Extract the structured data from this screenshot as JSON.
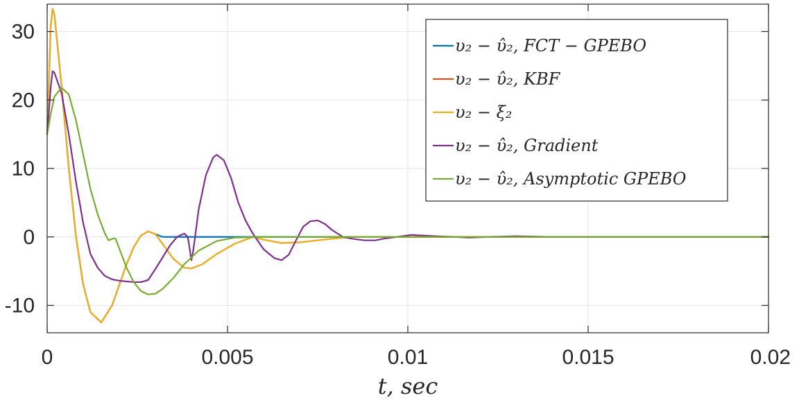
{
  "chart_data": {
    "type": "line",
    "title": "",
    "xlabel": "t, sec",
    "ylabel": "",
    "xlim": [
      0,
      0.02
    ],
    "ylim": [
      -14,
      34
    ],
    "xticks": [
      0,
      0.005,
      0.01,
      0.015,
      0.02
    ],
    "xtick_labels": [
      "0",
      "0.005",
      "0.01",
      "0.015",
      "0.02"
    ],
    "yticks": [
      -10,
      0,
      10,
      20,
      30
    ],
    "ytick_labels": [
      "-10",
      "0",
      "10",
      "20",
      "30"
    ],
    "grid": true,
    "legend_position": "top-right",
    "series": [
      {
        "name": "υ₂ − υ̂₂, FCT − GPEBO",
        "color": "#0072BD",
        "points": [
          [
            0,
            15
          ],
          [
            0.0001,
            31
          ],
          [
            0.00015,
            33.3
          ],
          [
            0.0002,
            32.5
          ],
          [
            0.0004,
            22
          ],
          [
            0.0006,
            10
          ],
          [
            0.0008,
            0
          ],
          [
            0.001,
            -7
          ],
          [
            0.0012,
            -11
          ],
          [
            0.0015,
            -12.5
          ],
          [
            0.0018,
            -10
          ],
          [
            0.002,
            -7
          ],
          [
            0.0022,
            -4
          ],
          [
            0.0024,
            -1.5
          ],
          [
            0.0026,
            0.2
          ],
          [
            0.0028,
            0.8
          ],
          [
            0.003,
            0.4
          ],
          [
            0.0032,
            0
          ],
          [
            0.004,
            0
          ],
          [
            0.005,
            0
          ],
          [
            0.01,
            0
          ],
          [
            0.015,
            0
          ],
          [
            0.02,
            0
          ]
        ]
      },
      {
        "name": "υ₂ − υ̂₂, KBF",
        "color": "#D95319",
        "points": [
          [
            0,
            15
          ],
          [
            0.0001,
            31
          ],
          [
            0.00015,
            33.3
          ],
          [
            0.0002,
            32.5
          ],
          [
            0.0004,
            22
          ],
          [
            0.0006,
            10
          ],
          [
            0.0008,
            0
          ],
          [
            0.001,
            -7
          ],
          [
            0.0012,
            -11
          ],
          [
            0.0015,
            -12.5
          ],
          [
            0.0018,
            -10
          ],
          [
            0.002,
            -7
          ],
          [
            0.0022,
            -4
          ],
          [
            0.0024,
            -1.5
          ],
          [
            0.0026,
            0.2
          ],
          [
            0.0028,
            0.8
          ],
          [
            0.003,
            0.4
          ],
          [
            0.0032,
            -1
          ],
          [
            0.0035,
            -3.2
          ],
          [
            0.0038,
            -4.5
          ],
          [
            0.004,
            -4.6
          ],
          [
            0.0043,
            -4
          ],
          [
            0.0047,
            -2.5
          ],
          [
            0.0052,
            -1
          ],
          [
            0.0057,
            0
          ],
          [
            0.006,
            -0.4
          ],
          [
            0.0065,
            -0.9
          ],
          [
            0.007,
            -0.8
          ],
          [
            0.0075,
            -0.5
          ],
          [
            0.008,
            -0.2
          ],
          [
            0.0085,
            0
          ],
          [
            0.009,
            0
          ],
          [
            0.01,
            0
          ],
          [
            0.015,
            0
          ],
          [
            0.02,
            0
          ]
        ]
      },
      {
        "name": "υ₂ − ξ₂",
        "color": "#EDB120",
        "points": [
          [
            0,
            15
          ],
          [
            0.0001,
            31
          ],
          [
            0.00015,
            33.3
          ],
          [
            0.0002,
            32.5
          ],
          [
            0.0004,
            22
          ],
          [
            0.0006,
            10
          ],
          [
            0.0008,
            0
          ],
          [
            0.001,
            -7
          ],
          [
            0.0012,
            -11
          ],
          [
            0.0015,
            -12.5
          ],
          [
            0.0018,
            -10
          ],
          [
            0.002,
            -7
          ],
          [
            0.0022,
            -4
          ],
          [
            0.0024,
            -1.5
          ],
          [
            0.0026,
            0.2
          ],
          [
            0.0028,
            0.8
          ],
          [
            0.003,
            0.4
          ],
          [
            0.0032,
            -1
          ],
          [
            0.0035,
            -3.2
          ],
          [
            0.0038,
            -4.5
          ],
          [
            0.004,
            -4.6
          ],
          [
            0.0043,
            -4
          ],
          [
            0.0047,
            -2.5
          ],
          [
            0.0052,
            -1
          ],
          [
            0.0057,
            0
          ],
          [
            0.006,
            -0.4
          ],
          [
            0.0065,
            -0.9
          ],
          [
            0.007,
            -0.8
          ],
          [
            0.0075,
            -0.5
          ],
          [
            0.008,
            -0.2
          ],
          [
            0.0085,
            0
          ],
          [
            0.009,
            0
          ],
          [
            0.01,
            0
          ],
          [
            0.015,
            0
          ],
          [
            0.02,
            0
          ]
        ]
      },
      {
        "name": "υ₂ − υ̂₂, Gradient",
        "color": "#7E2F8E",
        "points": [
          [
            0,
            15
          ],
          [
            0.0001,
            22
          ],
          [
            0.00015,
            24.2
          ],
          [
            0.0002,
            24
          ],
          [
            0.0004,
            21
          ],
          [
            0.0006,
            15
          ],
          [
            0.0008,
            8
          ],
          [
            0.001,
            2
          ],
          [
            0.0012,
            -2.5
          ],
          [
            0.0014,
            -4.5
          ],
          [
            0.0016,
            -5.7
          ],
          [
            0.0018,
            -6.2
          ],
          [
            0.002,
            -6.4
          ],
          [
            0.0022,
            -6.5
          ],
          [
            0.0024,
            -6.6
          ],
          [
            0.0026,
            -6.6
          ],
          [
            0.0028,
            -6.3
          ],
          [
            0.003,
            -4.7
          ],
          [
            0.0032,
            -3
          ],
          [
            0.0034,
            -1.3
          ],
          [
            0.0036,
            0
          ],
          [
            0.0038,
            0.5
          ],
          [
            0.0039,
            0
          ],
          [
            0.004,
            -3.4
          ],
          [
            0.00405,
            -2
          ],
          [
            0.0042,
            4
          ],
          [
            0.0044,
            9
          ],
          [
            0.0046,
            11.6
          ],
          [
            0.0047,
            12
          ],
          [
            0.0049,
            11.2
          ],
          [
            0.0051,
            8.6
          ],
          [
            0.0053,
            5
          ],
          [
            0.0055,
            2.4
          ],
          [
            0.0057,
            0.5
          ],
          [
            0.006,
            -1.8
          ],
          [
            0.0063,
            -3.1
          ],
          [
            0.0065,
            -3.4
          ],
          [
            0.0067,
            -2.6
          ],
          [
            0.0069,
            -0.5
          ],
          [
            0.0071,
            1.5
          ],
          [
            0.0073,
            2.3
          ],
          [
            0.0075,
            2.4
          ],
          [
            0.0077,
            1.9
          ],
          [
            0.0079,
            1
          ],
          [
            0.0082,
            0
          ],
          [
            0.0085,
            -0.3
          ],
          [
            0.0088,
            -0.5
          ],
          [
            0.0091,
            -0.5
          ],
          [
            0.0094,
            -0.2
          ],
          [
            0.0097,
            0
          ],
          [
            0.0101,
            0.3
          ],
          [
            0.0104,
            0.2
          ],
          [
            0.0108,
            0.1
          ],
          [
            0.0113,
            0
          ],
          [
            0.0117,
            -0.1
          ],
          [
            0.0122,
            0
          ],
          [
            0.013,
            0.1
          ],
          [
            0.014,
            0
          ],
          [
            0.015,
            0
          ],
          [
            0.02,
            0
          ]
        ]
      },
      {
        "name": "υ₂ − υ̂₂, Asymptotic GPEBO",
        "color": "#77AC30",
        "points": [
          [
            0,
            15
          ],
          [
            0.0001,
            18
          ],
          [
            0.0002,
            20.5
          ],
          [
            0.0004,
            21.8
          ],
          [
            0.0006,
            20.8
          ],
          [
            0.0008,
            17
          ],
          [
            0.001,
            12
          ],
          [
            0.0012,
            7
          ],
          [
            0.0014,
            3.3
          ],
          [
            0.0016,
            0.5
          ],
          [
            0.0017,
            -0.5
          ],
          [
            0.0018,
            -0.3
          ],
          [
            0.00185,
            -0.2
          ],
          [
            0.0019,
            -0.3
          ],
          [
            0.002,
            -1.7
          ],
          [
            0.0022,
            -4.5
          ],
          [
            0.0024,
            -6.6
          ],
          [
            0.0026,
            -7.9
          ],
          [
            0.0028,
            -8.4
          ],
          [
            0.003,
            -8.3
          ],
          [
            0.0032,
            -7.6
          ],
          [
            0.0035,
            -6
          ],
          [
            0.0038,
            -4
          ],
          [
            0.0042,
            -2
          ],
          [
            0.0047,
            -0.6
          ],
          [
            0.0052,
            -0.1
          ],
          [
            0.006,
            0
          ],
          [
            0.01,
            0
          ],
          [
            0.015,
            0
          ],
          [
            0.02,
            0
          ]
        ]
      }
    ]
  }
}
